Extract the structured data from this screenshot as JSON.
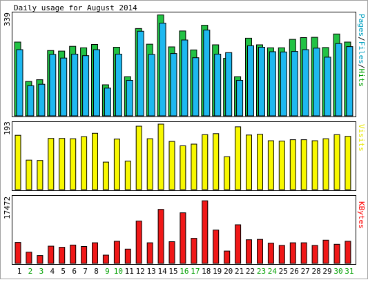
{
  "chart_data": [
    {
      "type": "bar",
      "title": "Daily usage for August 2014",
      "ymax_label": "339",
      "ylim": [
        0,
        339
      ],
      "right_label_parts": [
        {
          "text": "Pages",
          "color": "#00A0C0"
        },
        {
          "text": "/",
          "color": "#000000"
        },
        {
          "text": "Files",
          "color": "#00A0C0"
        },
        {
          "text": "/",
          "color": "#000000"
        },
        {
          "text": "Hits",
          "color": "#00A000"
        }
      ],
      "series": [
        {
          "name": "Hits",
          "color": "#22C244",
          "values": [
            245,
            114,
            120,
            217,
            215,
            231,
            226,
            237,
            103,
            228,
            130,
            290,
            238,
            335,
            229,
            282,
            219,
            301,
            236,
            191,
            130,
            258,
            236,
            226,
            226,
            254,
            260,
            261,
            227,
            272,
            245
          ]
        },
        {
          "name": "Files",
          "color": "#1EB8F0",
          "values": [
            220,
            100,
            105,
            204,
            192,
            205,
            200,
            220,
            92,
            205,
            118,
            281,
            204,
            308,
            207,
            252,
            193,
            285,
            205,
            210,
            118,
            233,
            228,
            213,
            212,
            214,
            220,
            225,
            195,
            240,
            230
          ]
        }
      ]
    },
    {
      "type": "bar",
      "ymax_label": "193",
      "ylim": [
        0,
        193
      ],
      "right_label_parts": [
        {
          "text": "Visits",
          "color": "#E8E800"
        }
      ],
      "series": [
        {
          "name": "Visits",
          "color": "#F8F800",
          "values": [
            160,
            87,
            86,
            151,
            151,
            150,
            156,
            166,
            81,
            149,
            84,
            187,
            150,
            193,
            142,
            129,
            134,
            162,
            165,
            97,
            185,
            161,
            163,
            144,
            143,
            147,
            147,
            144,
            150,
            162,
            157
          ]
        }
      ]
    },
    {
      "type": "bar",
      "ymax_label": "17472",
      "ylim": [
        0,
        17472
      ],
      "right_label_parts": [
        {
          "text": "KBytes",
          "color": "#FF0000"
        }
      ],
      "series": [
        {
          "name": "KBytes",
          "color": "#F01818",
          "values": [
            5600,
            3000,
            2100,
            4600,
            4300,
            4900,
            4500,
            5500,
            2200,
            5900,
            3800,
            11300,
            5500,
            14400,
            5800,
            13500,
            6700,
            16700,
            8900,
            3300,
            10300,
            6300,
            6400,
            5400,
            4800,
            5500,
            5500,
            4800,
            6200,
            5100,
            5900
          ]
        }
      ]
    }
  ],
  "days": [
    {
      "label": "1",
      "color": "#000000"
    },
    {
      "label": "2",
      "color": "#00A000"
    },
    {
      "label": "3",
      "color": "#00A000"
    },
    {
      "label": "4",
      "color": "#000000"
    },
    {
      "label": "5",
      "color": "#000000"
    },
    {
      "label": "6",
      "color": "#000000"
    },
    {
      "label": "7",
      "color": "#000000"
    },
    {
      "label": "8",
      "color": "#000000"
    },
    {
      "label": "9",
      "color": "#00A000"
    },
    {
      "label": "10",
      "color": "#00A000"
    },
    {
      "label": "11",
      "color": "#000000"
    },
    {
      "label": "12",
      "color": "#000000"
    },
    {
      "label": "13",
      "color": "#000000"
    },
    {
      "label": "14",
      "color": "#000000"
    },
    {
      "label": "15",
      "color": "#000000"
    },
    {
      "label": "16",
      "color": "#00A000"
    },
    {
      "label": "17",
      "color": "#00A000"
    },
    {
      "label": "18",
      "color": "#000000"
    },
    {
      "label": "19",
      "color": "#000000"
    },
    {
      "label": "20",
      "color": "#000000"
    },
    {
      "label": "21",
      "color": "#000000"
    },
    {
      "label": "22",
      "color": "#000000"
    },
    {
      "label": "23",
      "color": "#00A000"
    },
    {
      "label": "24",
      "color": "#00A000"
    },
    {
      "label": "25",
      "color": "#000000"
    },
    {
      "label": "26",
      "color": "#000000"
    },
    {
      "label": "27",
      "color": "#000000"
    },
    {
      "label": "28",
      "color": "#000000"
    },
    {
      "label": "29",
      "color": "#000000"
    },
    {
      "label": "30",
      "color": "#00A000"
    },
    {
      "label": "31",
      "color": "#00A000"
    }
  ]
}
